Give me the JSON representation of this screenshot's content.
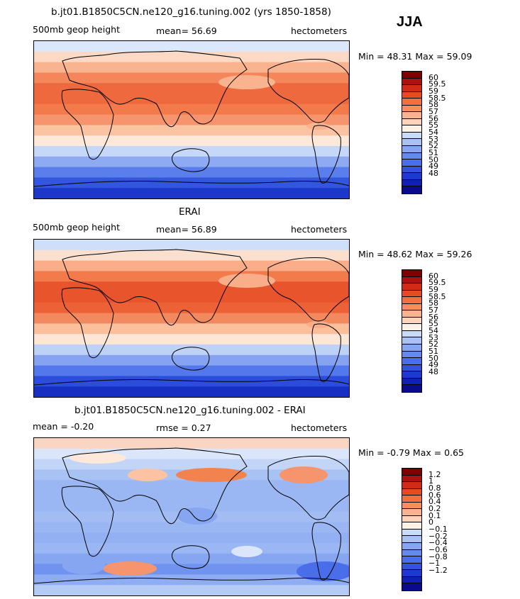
{
  "season": "JJA",
  "panels": [
    {
      "title": "b.jt01.B1850C5CN.ne120_g16.tuning.002 (yrs 1850-1858)",
      "left_label": "500mb geop height",
      "center_label": "mean=  56.69",
      "right_label": "hectometers",
      "minmax": "Min =  48.31 Max =  59.09",
      "colorbar": {
        "colors": [
          "#7f0000",
          "#b00f0f",
          "#d32a15",
          "#e84a24",
          "#f2703f",
          "#f88e5c",
          "#fbb290",
          "#fdd3ba",
          "#fdf0e6",
          "#c8dcf8",
          "#a7c3f5",
          "#86a6f1",
          "#658aee",
          "#4a6ee9",
          "#3453dd",
          "#1f38cf",
          "#1020b5",
          "#0a0a8c"
        ],
        "labels": [
          "60",
          "59.5",
          "59",
          "58.5",
          "58",
          "57",
          "56",
          "55",
          "54",
          "53",
          "52",
          "51",
          "50",
          "49",
          "48"
        ]
      },
      "bands": [
        "#dbe7fb",
        "#fcd9c4",
        "#f9b38f",
        "#f4865b",
        "#ee6a3e",
        "#ee6a3e",
        "#f27a4b",
        "#f6956d",
        "#fbc3a2",
        "#fde8da",
        "#c6d8f7",
        "#8eaaf2",
        "#5a7fec",
        "#3356df",
        "#1c37c9"
      ]
    },
    {
      "title": "ERAI",
      "left_label": "500mb geop height",
      "center_label": "mean=  56.89",
      "right_label": "hectometers",
      "minmax": "Min =  48.62 Max =  59.26",
      "colorbar": {
        "colors": [
          "#7f0000",
          "#b00f0f",
          "#d32a15",
          "#e84a24",
          "#f2703f",
          "#f88e5c",
          "#fbb290",
          "#fdd3ba",
          "#fdf0e6",
          "#c8dcf8",
          "#a7c3f5",
          "#86a6f1",
          "#658aee",
          "#4a6ee9",
          "#3453dd",
          "#1f38cf",
          "#1020b5",
          "#0a0a8c"
        ],
        "labels": [
          "60",
          "59.5",
          "59",
          "58.5",
          "58",
          "57",
          "56",
          "55",
          "54",
          "53",
          "52",
          "51",
          "50",
          "49",
          "48"
        ]
      },
      "bands": [
        "#cfdff9",
        "#fce0cf",
        "#f9ad88",
        "#f27a4b",
        "#e8552c",
        "#e8552c",
        "#ec6236",
        "#f38a5f",
        "#fbbf9c",
        "#fde6d6",
        "#bed2f6",
        "#86a3f1",
        "#5278eb",
        "#2c4ddc",
        "#1730c3"
      ]
    },
    {
      "title": "b.jt01.B1850C5CN.ne120_g16.tuning.002 - ERAI",
      "left_label": "mean =  -0.20",
      "center_label": "rmse =    0.27",
      "right_label": "hectometers",
      "minmax": "Min =  -0.79 Max =    0.65",
      "colorbar": {
        "colors": [
          "#7f0000",
          "#b00f0f",
          "#d32a15",
          "#e84a24",
          "#f2703f",
          "#f88e5c",
          "#fbb290",
          "#fdd3ba",
          "#fdf0e6",
          "#c8dcf8",
          "#a7c3f5",
          "#86a6f1",
          "#658aee",
          "#4a6ee9",
          "#3453dd",
          "#1f38cf",
          "#1020b5",
          "#0a0a8c"
        ],
        "labels": [
          "1.2",
          "1",
          "0.8",
          "0.6",
          "0.4",
          "0.2",
          "0.1",
          "0",
          "−0.1",
          "−0.2",
          "−0.4",
          "−0.6",
          "−0.8",
          "−1",
          "−1.2"
        ]
      },
      "bands": [
        "#fbd5c3",
        "#dbe6fb",
        "#c2d5f7",
        "#a9c2f4",
        "#9bb7f3",
        "#9bb7f3",
        "#9bb7f3",
        "#a3bdf4",
        "#9bb7f3",
        "#93b1f2",
        "#9bb7f3",
        "#86a6f1",
        "#6f93ee",
        "#8fadf2",
        "#b4cbf6"
      ]
    }
  ]
}
